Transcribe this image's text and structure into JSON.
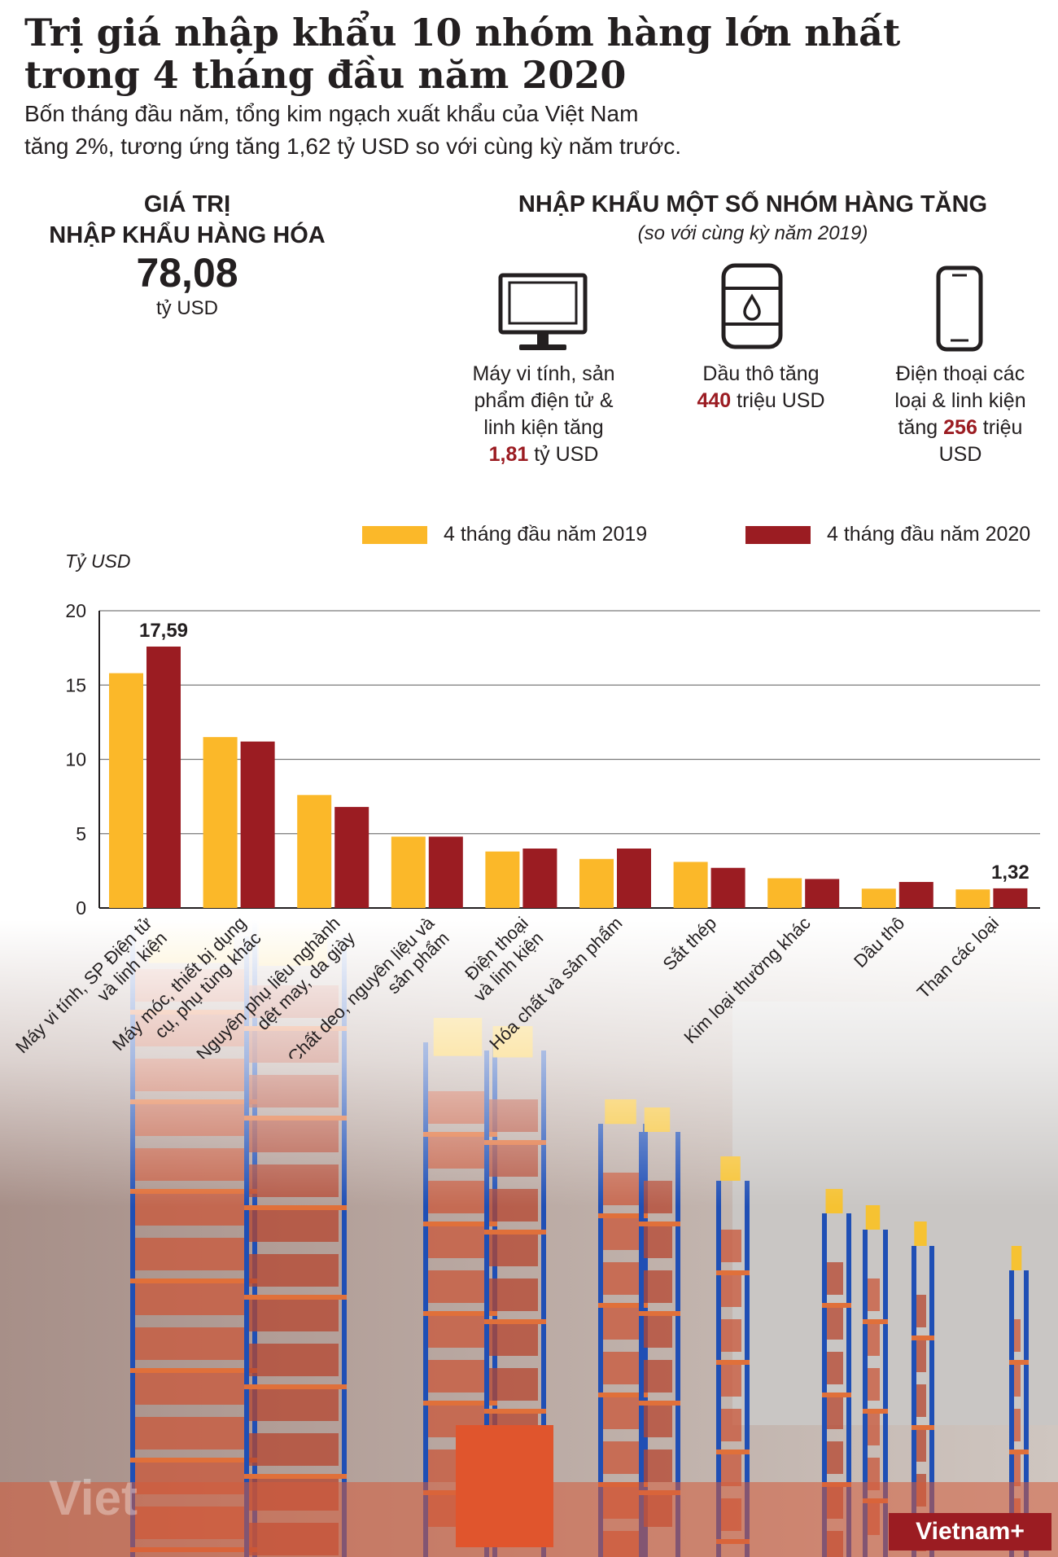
{
  "title_line1": "Trị giá nhập khẩu 10 nhóm hàng lớn nhất",
  "title_line2": "trong 4 tháng đầu năm 2020",
  "subtitle_line1": "Bốn tháng đầu năm, tổng kim ngạch xuất khẩu của Việt Nam",
  "subtitle_line2": "tăng 2%, tương ứng tăng 1,62 tỷ USD so với cùng kỳ năm trước.",
  "kpi": {
    "label_line1": "GIÁ TRỊ",
    "label_line2": "NHẬP KHẨU HÀNG HÓA",
    "value": "78,08",
    "unit": "tỷ USD"
  },
  "increase": {
    "title": "NHẬP KHẨU MỘT SỐ NHÓM HÀNG TĂNG",
    "subtitle": "(so với cùng kỳ năm 2019)",
    "items": [
      {
        "icon": "computer-monitor-icon",
        "line1": "Máy vi tính, sản",
        "line2": "phẩm điện tử &",
        "line3": "linh kiện tăng",
        "pre": "",
        "value": "1,81",
        "post": " tỷ USD"
      },
      {
        "icon": "oil-barrel-icon",
        "line1": "Dầu thô tăng",
        "pre": "",
        "value": "440",
        "post": " triệu USD"
      },
      {
        "icon": "smartphone-icon",
        "line1": "Điện thoại các",
        "line2": "loại & linh kiện",
        "pre": "tăng ",
        "value": "256",
        "post": " triệu",
        "line4": "USD"
      }
    ]
  },
  "colors": {
    "y2019": "#fbb829",
    "y2020": "#9b1c22",
    "highlight": "#9b1c22"
  },
  "chart_data": {
    "type": "bar",
    "ylabel": "Tỷ USD",
    "ylim": [
      0,
      20
    ],
    "yticks": [
      0,
      5,
      10,
      15,
      20
    ],
    "grid": true,
    "legend_position": "top",
    "categories": [
      "Máy vi tính, SP Điện tử và linh kiện",
      "Máy móc, thiết bị dụng cụ, phụ tùng khác",
      "Nguyên phụ liệu nghành dệt may, da giày",
      "Chất dẻo, nguyên liệu và sản phẩm",
      "Điện thoại và linh kiện",
      "Hóa chất và sản phẩm",
      "Sắt thép",
      "Kim loại thường khác",
      "Dầu thô",
      "Than các loại"
    ],
    "category_labels": [
      [
        "Máy vi tính, SP Điện tử",
        "và linh kiện"
      ],
      [
        "Máy móc, thiết bị dụng",
        "cụ, phụ tùng khác"
      ],
      [
        "Nguyên phụ liệu nghành",
        "dệt may, da giày"
      ],
      [
        "Chất deo, nguyên liệu và",
        "sản phẩm"
      ],
      [
        "Điện thoại",
        "và linh kiện"
      ],
      [
        "Hóa chất và sản phẩm"
      ],
      [
        "Sắt thép"
      ],
      [
        "Kim loại thường khác"
      ],
      [
        "Dầu thô"
      ],
      [
        "Than các loại"
      ]
    ],
    "series": [
      {
        "name": "4 tháng đầu năm 2019",
        "values": [
          15.8,
          11.5,
          7.6,
          4.8,
          3.8,
          3.3,
          3.1,
          2.0,
          1.3,
          1.25
        ]
      },
      {
        "name": "4 tháng đầu năm 2020",
        "values": [
          17.59,
          11.2,
          6.8,
          4.8,
          4.0,
          4.0,
          2.7,
          1.95,
          1.75,
          1.32
        ]
      }
    ],
    "data_labels": [
      {
        "series": 1,
        "index": 0,
        "text": "17,59"
      },
      {
        "series": 1,
        "index": 9,
        "text": "1,32"
      }
    ]
  },
  "watermark": "Viet",
  "brand": "Vietnam+"
}
